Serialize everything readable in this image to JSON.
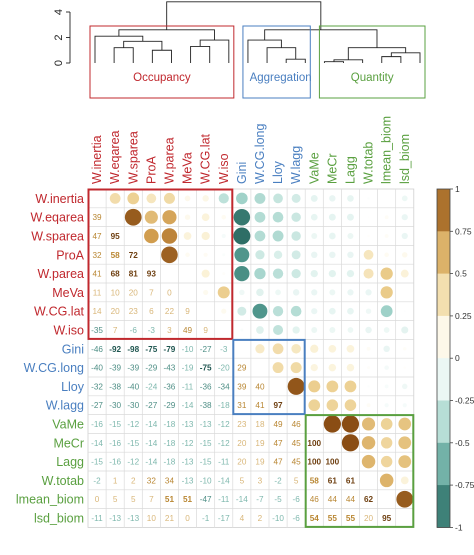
{
  "chart_data": {
    "type": "heatmap",
    "title": "",
    "variables": [
      "W.inertia",
      "W.eqarea",
      "W.sparea",
      "ProA",
      "W.parea",
      "MeVa",
      "W.CG.lat",
      "W.iso",
      "Gini",
      "W.CG.long",
      "Lloy",
      "W.lagg",
      "VaMe",
      "MeCr",
      "Lagg",
      "W.totab",
      "lmean_biom",
      "lsd_biom"
    ],
    "variable_groups": [
      "Occupancy",
      "Occupancy",
      "Occupancy",
      "Occupancy",
      "Occupancy",
      "Occupancy",
      "Occupancy",
      "Occupancy",
      "Aggregation",
      "Aggregation",
      "Aggregation",
      "Aggregation",
      "Quantity",
      "Quantity",
      "Quantity",
      "Quantity",
      "Quantity",
      "Quantity"
    ],
    "groups": [
      {
        "name": "Occupancy",
        "color": "#c0282e",
        "start": 0,
        "end": 7
      },
      {
        "name": "Aggregation",
        "color": "#4a7fc0",
        "start": 8,
        "end": 11
      },
      {
        "name": "Quantity",
        "color": "#5aa040",
        "start": 12,
        "end": 17
      }
    ],
    "lower_triangle_percent": [
      [],
      [
        39
      ],
      [
        47,
        95
      ],
      [
        32,
        58,
        72
      ],
      [
        41,
        68,
        81,
        93
      ],
      [
        11,
        10,
        20,
        7,
        0
      ],
      [
        14,
        20,
        23,
        6,
        22,
        9
      ],
      [
        -35,
        7,
        -6,
        -3,
        3,
        49,
        9
      ],
      [
        -46,
        -92,
        -98,
        -75,
        -79,
        -10,
        -27,
        -3
      ],
      [
        -40,
        -39,
        -39,
        -29,
        -43,
        -19,
        -75,
        -20,
        29
      ],
      [
        -32,
        -38,
        -40,
        -24,
        -36,
        -11,
        -36,
        -34,
        39,
        40
      ],
      [
        -27,
        -30,
        -30,
        -27,
        -29,
        -14,
        -38,
        -18,
        31,
        41,
        97
      ],
      [
        -16,
        -15,
        -12,
        -14,
        -18,
        -13,
        -13,
        -12,
        23,
        18,
        49,
        46
      ],
      [
        -14,
        -16,
        -15,
        -14,
        -18,
        -12,
        -15,
        -12,
        20,
        19,
        47,
        45,
        100
      ],
      [
        -15,
        -16,
        -12,
        -14,
        -18,
        -13,
        -15,
        -11,
        20,
        19,
        47,
        45,
        100,
        100
      ],
      [
        -2,
        1,
        2,
        32,
        34,
        -13,
        -10,
        -14,
        5,
        3,
        -2,
        5,
        58,
        61,
        61
      ],
      [
        0,
        5,
        5,
        7,
        51,
        51,
        -47,
        -11,
        -14,
        -7,
        -5,
        -6,
        46,
        44,
        44,
        62
      ],
      [
        -11,
        -13,
        -13,
        10,
        21,
        0,
        -1,
        -17,
        4,
        2,
        -10,
        -6,
        54,
        55,
        55,
        20,
        95
      ]
    ],
    "upper_triangle": "circles sized and colored by correlation",
    "colorbar": {
      "min": -1,
      "max": 1,
      "ticks": [
        "1",
        "0.75",
        "0.5",
        "0.25",
        "0",
        "-0.25",
        "-0.5",
        "-0.75",
        "-1"
      ]
    },
    "dendrogram": {
      "y_ticks": [
        "4",
        "2",
        "0"
      ]
    },
    "colors": {
      "positive": "#8a4d14",
      "negative": "#2b6b63",
      "occupancy": "#c0282e",
      "aggregation": "#4a7fc0",
      "quantity": "#5aa040"
    }
  }
}
